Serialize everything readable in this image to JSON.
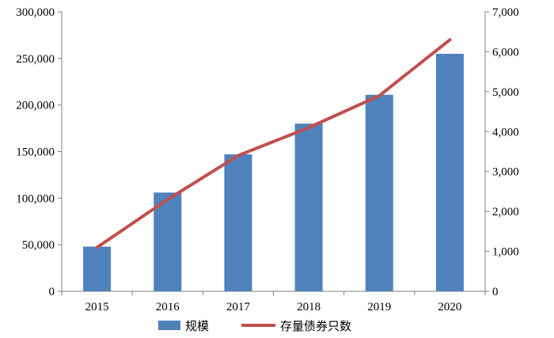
{
  "chart_data": {
    "type": "bar",
    "categories": [
      "2015",
      "2016",
      "2017",
      "2018",
      "2019",
      "2020"
    ],
    "series": [
      {
        "name": "规模",
        "kind": "bar",
        "axis": "left",
        "color": "#4f81bd",
        "values": [
          48000,
          106000,
          147000,
          180000,
          211000,
          255000
        ]
      },
      {
        "name": "存量债券只数",
        "kind": "line",
        "axis": "right",
        "color": "#c0504d",
        "values": [
          1100,
          2300,
          3400,
          4100,
          4900,
          6300
        ]
      }
    ],
    "y_left": {
      "min": 0,
      "max": 300000,
      "ticks": [
        "0",
        "50,000",
        "100,000",
        "150,000",
        "200,000",
        "250,000",
        "300,000"
      ]
    },
    "y_right": {
      "min": 0,
      "max": 7000,
      "ticks": [
        "0",
        "1,000",
        "2,000",
        "3,000",
        "4,000",
        "5,000",
        "6,000",
        "7,000"
      ]
    },
    "grid": false,
    "legend": "bottom"
  }
}
